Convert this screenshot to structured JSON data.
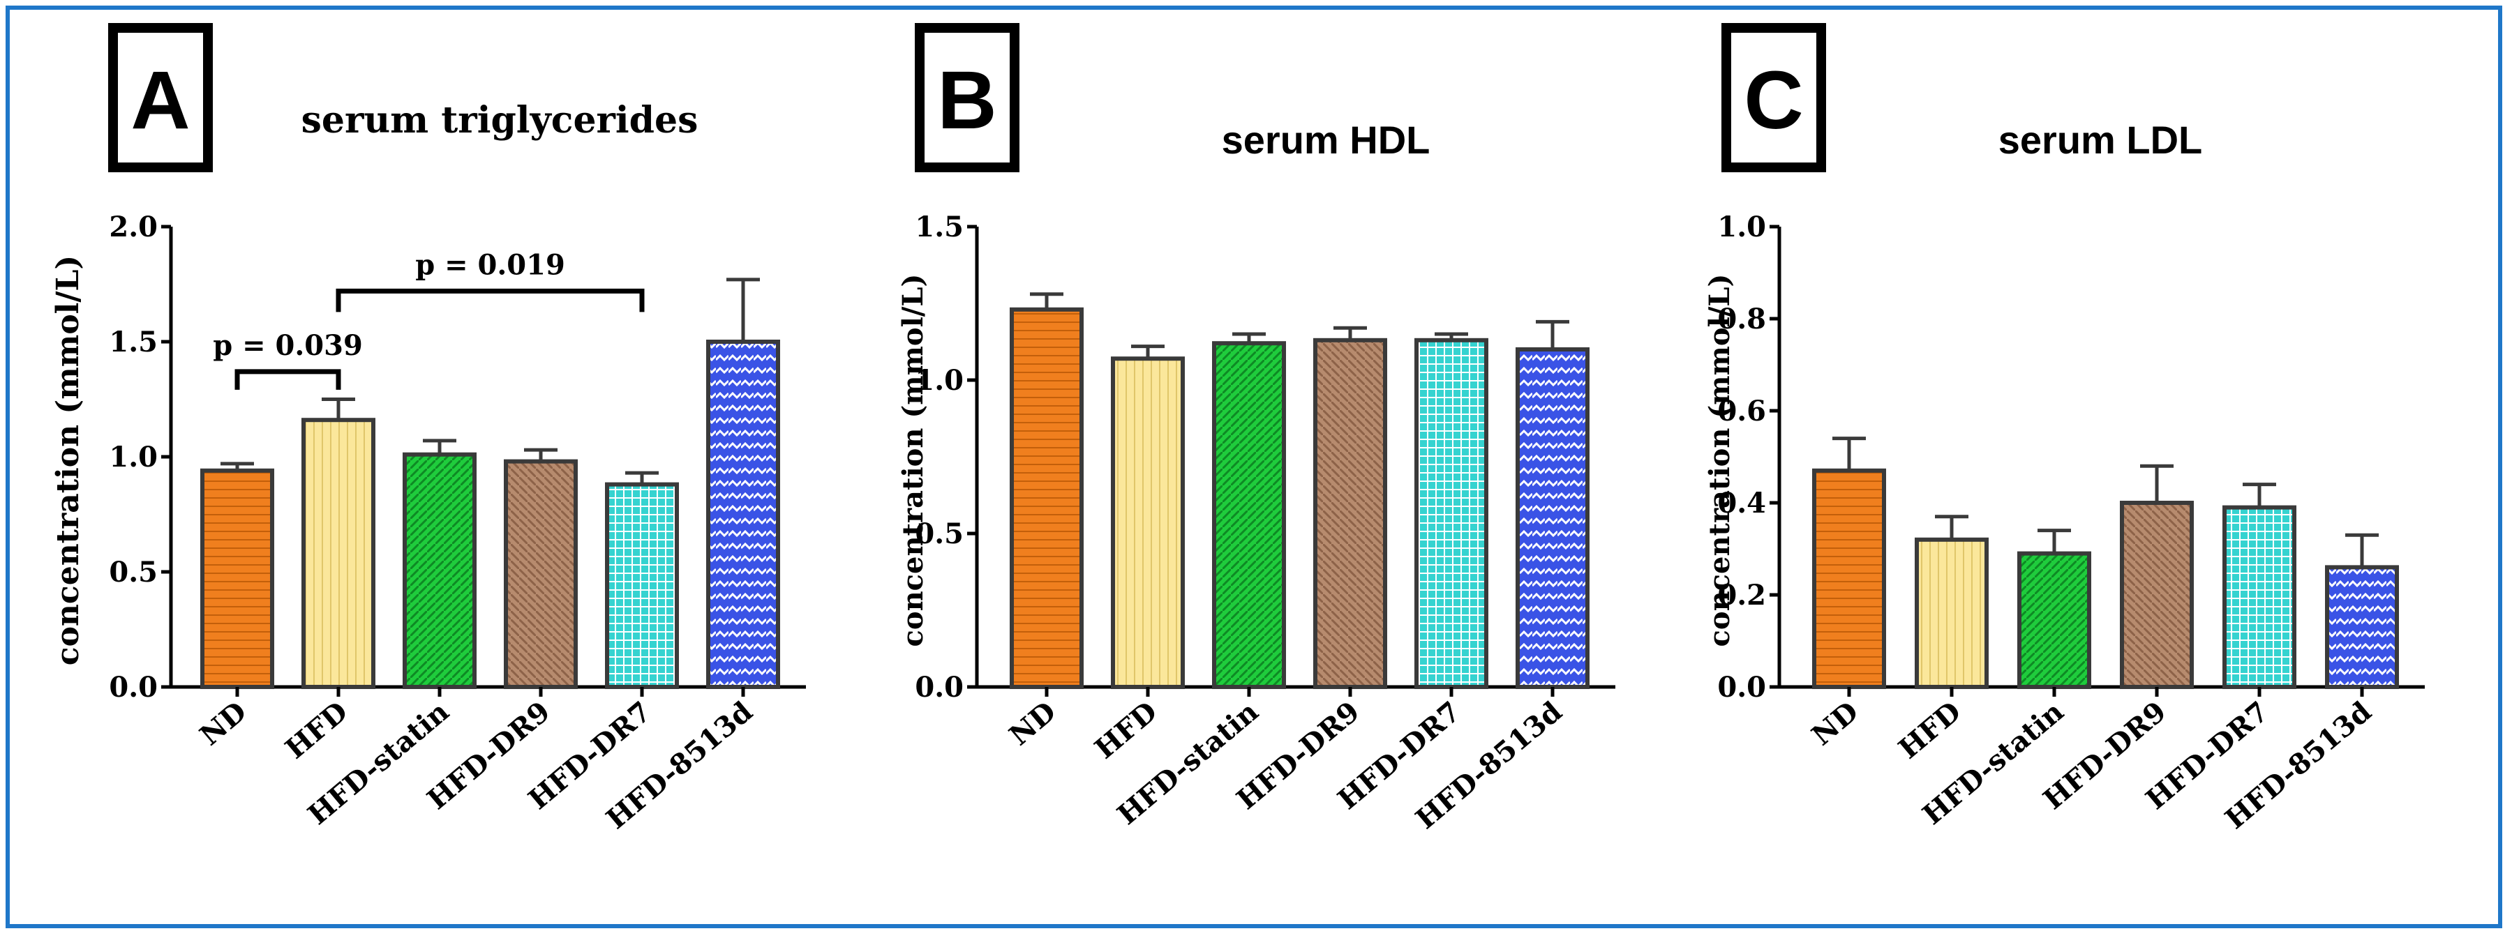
{
  "chart_data": [
    {
      "panel": "A",
      "type": "bar",
      "title": "serum triglycerides",
      "ylabel": "concentration (mmol/L)",
      "xlabel": "",
      "ylim": [
        0,
        2.0
      ],
      "yticks": [
        "0.0",
        "0.5",
        "1.0",
        "1.5",
        "2.0"
      ],
      "categories": [
        "ND",
        "HFD",
        "HFD-statin",
        "HFD-DR9",
        "HFD-DR7",
        "HFD-8513d"
      ],
      "values": [
        0.94,
        1.16,
        1.01,
        0.98,
        0.88,
        1.5
      ],
      "errors": [
        0.03,
        0.09,
        0.06,
        0.05,
        0.05,
        0.27
      ],
      "annotations": [
        {
          "text": "p = 0.039",
          "from": 0,
          "to": 1
        },
        {
          "text": "p = 0.019",
          "from": 1,
          "to": 4
        }
      ]
    },
    {
      "panel": "B",
      "type": "bar",
      "title": "serum HDL",
      "ylabel": "concentration (mmol/L)",
      "xlabel": "",
      "ylim": [
        0,
        1.5
      ],
      "yticks": [
        "0.0",
        "0.5",
        "1.0",
        "1.5"
      ],
      "categories": [
        "ND",
        "HFD",
        "HFD-statin",
        "HFD-DR9",
        "HFD-DR7",
        "HFD-8513d"
      ],
      "values": [
        1.23,
        1.07,
        1.12,
        1.13,
        1.13,
        1.1
      ],
      "errors": [
        0.05,
        0.04,
        0.03,
        0.04,
        0.02,
        0.09
      ],
      "annotations": []
    },
    {
      "panel": "C",
      "type": "bar",
      "title": "serum LDL",
      "ylabel": "concentration (mmol/L)",
      "xlabel": "",
      "ylim": [
        0,
        1.0
      ],
      "yticks": [
        "0.0",
        "0.2",
        "0.4",
        "0.6",
        "0.8",
        "1.0"
      ],
      "categories": [
        "ND",
        "HFD",
        "HFD-statin",
        "HFD-DR9",
        "HFD-DR7",
        "HFD-8513d"
      ],
      "values": [
        0.47,
        0.32,
        0.29,
        0.4,
        0.39,
        0.26
      ],
      "errors": [
        0.07,
        0.05,
        0.05,
        0.08,
        0.05,
        0.07
      ],
      "annotations": []
    }
  ],
  "colors": {
    "frame": "#1f77c9",
    "bars": [
      "#f07f1e",
      "#fbe79b",
      "#1fcc3c",
      "#b78b6e",
      "#35d3d0",
      "#3a53e6"
    ],
    "outline": "#3a3a3a"
  }
}
